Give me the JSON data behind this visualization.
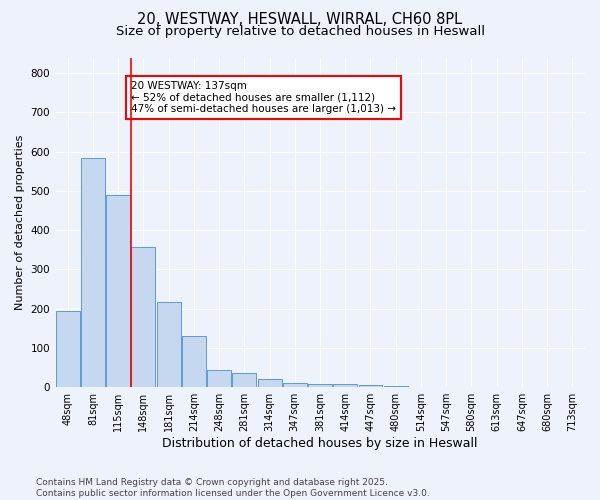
{
  "title_line1": "20, WESTWAY, HESWALL, WIRRAL, CH60 8PL",
  "title_line2": "Size of property relative to detached houses in Heswall",
  "xlabel": "Distribution of detached houses by size in Heswall",
  "ylabel": "Number of detached properties",
  "bin_labels": [
    "48sqm",
    "81sqm",
    "115sqm",
    "148sqm",
    "181sqm",
    "214sqm",
    "248sqm",
    "281sqm",
    "314sqm",
    "347sqm",
    "381sqm",
    "414sqm",
    "447sqm",
    "480sqm",
    "514sqm",
    "547sqm",
    "580sqm",
    "613sqm",
    "647sqm",
    "680sqm",
    "713sqm"
  ],
  "bar_values": [
    193,
    585,
    490,
    358,
    216,
    130,
    45,
    35,
    20,
    10,
    8,
    8,
    5,
    4,
    0,
    0,
    0,
    0,
    0,
    0,
    0
  ],
  "bar_color": "#c5d8f0",
  "bar_edge_color": "#5b9bd5",
  "vline_index": 2.5,
  "vline_color": "red",
  "annotation_text": "20 WESTWAY: 137sqm\n← 52% of detached houses are smaller (1,112)\n47% of semi-detached houses are larger (1,013) →",
  "annotation_box_color": "white",
  "annotation_box_edge_color": "red",
  "ylim": [
    0,
    840
  ],
  "yticks": [
    0,
    100,
    200,
    300,
    400,
    500,
    600,
    700,
    800
  ],
  "background_color": "#eef2fb",
  "footer_text": "Contains HM Land Registry data © Crown copyright and database right 2025.\nContains public sector information licensed under the Open Government Licence v3.0.",
  "title_fontsize": 10.5,
  "subtitle_fontsize": 9.5,
  "xlabel_fontsize": 9,
  "ylabel_fontsize": 8,
  "tick_fontsize": 7,
  "annotation_fontsize": 7.5,
  "footer_fontsize": 6.5
}
